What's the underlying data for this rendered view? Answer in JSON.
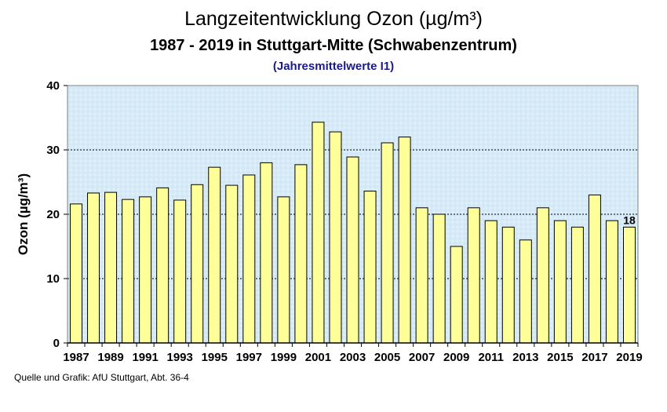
{
  "title": "Langzeitentwicklung Ozon (µg/m³)",
  "subtitle": "1987 - 2019 in Stuttgart-Mitte (Schwabenzentrum)",
  "subtitle2": "(Jahresmittelwerte I1)",
  "source": "Quelle und Grafik: AfU Stuttgart, Abt. 36-4",
  "colors": {
    "bar": "#ffff99",
    "bar_stroke": "#000000",
    "plot_bg": "#d6ebf7",
    "grid": "#000000"
  },
  "chart_data": {
    "type": "bar",
    "title": "Langzeitentwicklung Ozon (µg/m³)",
    "ylabel": "Ozon (µg/m³)",
    "xlabel": "",
    "ylim": [
      0,
      40
    ],
    "yticks": [
      0,
      10,
      20,
      30,
      40
    ],
    "grid": "horizontal-dashed",
    "categories": [
      "1987",
      "1988",
      "1989",
      "1990",
      "1991",
      "1992",
      "1993",
      "1994",
      "1995",
      "1996",
      "1997",
      "1998",
      "1999",
      "2000",
      "2001",
      "2002",
      "2003",
      "2004",
      "2005",
      "2006",
      "2007",
      "2008",
      "2009",
      "2010",
      "2011",
      "2012",
      "2013",
      "2014",
      "2015",
      "2016",
      "2017",
      "2018",
      "2019"
    ],
    "xtick_labels": [
      "1987",
      "",
      "1989",
      "",
      "1991",
      "",
      "1993",
      "",
      "1995",
      "",
      "1997",
      "",
      "1999",
      "",
      "2001",
      "",
      "2003",
      "",
      "2005",
      "",
      "2007",
      "",
      "2009",
      "",
      "2011",
      "",
      "2013",
      "",
      "2015",
      "",
      "2017",
      "",
      "2019"
    ],
    "values": [
      21.6,
      23.3,
      23.4,
      22.3,
      22.7,
      24.1,
      22.2,
      24.6,
      27.3,
      24.5,
      26.1,
      28.0,
      22.7,
      27.7,
      34.3,
      32.8,
      28.9,
      23.6,
      31.1,
      32.0,
      21.0,
      20.0,
      15.0,
      21.0,
      19.0,
      18.0,
      16.0,
      21.0,
      19.0,
      18.0,
      23.0,
      19.0,
      18.0
    ],
    "data_labels": [
      {
        "index": 32,
        "text": "18"
      }
    ]
  }
}
